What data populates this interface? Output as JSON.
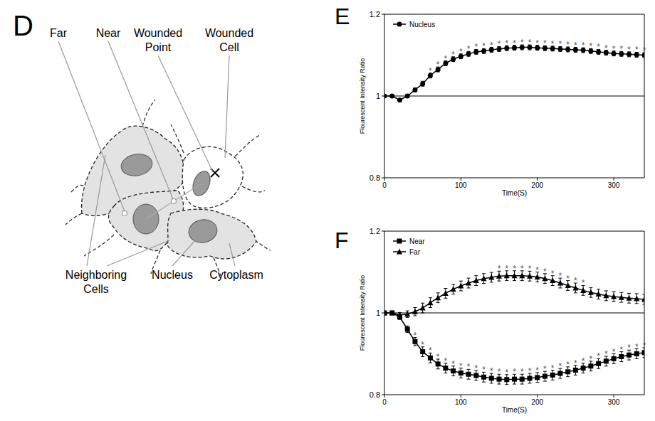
{
  "diagram": {
    "panel": "D",
    "labels": [
      "Far",
      "Near",
      "Wounded Point",
      "Wounded Cell",
      "Neighboring Cells",
      "Nucleus",
      "Cytoplasm"
    ]
  },
  "chart_data": [
    {
      "panel": "E",
      "type": "line",
      "xlabel": "Time(S)",
      "ylabel": "Flourescent Intensity Ratio",
      "x": [
        0,
        10,
        20,
        30,
        40,
        50,
        60,
        70,
        80,
        90,
        100,
        110,
        120,
        130,
        140,
        150,
        160,
        170,
        180,
        190,
        200,
        210,
        220,
        230,
        240,
        250,
        260,
        270,
        280,
        290,
        300,
        310,
        320,
        330,
        340
      ],
      "xlim": [
        0,
        340
      ],
      "xticks": [
        0,
        100,
        200,
        300
      ],
      "ylim": [
        0.8,
        1.2
      ],
      "yticks": [
        0.8,
        1,
        1.2
      ],
      "hline": 1,
      "legend": "upper left",
      "series": [
        {
          "name": "Nucleus",
          "color": "#000000",
          "marker": "circle",
          "values": [
            1,
            1.0,
            0.99,
            1.0,
            1.015,
            1.03,
            1.05,
            1.065,
            1.08,
            1.09,
            1.097,
            1.103,
            1.108,
            1.11,
            1.113,
            1.115,
            1.117,
            1.118,
            1.119,
            1.119,
            1.118,
            1.117,
            1.116,
            1.115,
            1.114,
            1.113,
            1.112,
            1.11,
            1.108,
            1.106,
            1.104,
            1.103,
            1.102,
            1.101,
            1.1
          ],
          "errors": [
            0,
            0.002,
            0.003,
            0.004,
            0.005,
            0.006,
            0.006,
            0.006,
            0.006,
            0.006,
            0.006,
            0.006,
            0.006,
            0.006,
            0.006,
            0.006,
            0.006,
            0.006,
            0.006,
            0.006,
            0.006,
            0.006,
            0.006,
            0.006,
            0.006,
            0.006,
            0.006,
            0.006,
            0.006,
            0.006,
            0.006,
            0.006,
            0.006,
            0.006,
            0.006
          ],
          "significance": {
            "label": "*",
            "x": [
              60,
              70,
              80,
              90,
              100,
              110,
              120,
              130,
              140,
              150,
              160,
              170,
              180,
              190,
              200,
              210,
              220,
              230,
              240,
              250,
              260,
              270,
              280,
              290,
              300,
              310,
              320,
              330,
              340
            ]
          }
        }
      ]
    },
    {
      "panel": "F",
      "type": "line",
      "xlabel": "Time(S)",
      "ylabel": "Flourescent Intensity Ratio",
      "x": [
        0,
        10,
        20,
        30,
        40,
        50,
        60,
        70,
        80,
        90,
        100,
        110,
        120,
        130,
        140,
        150,
        160,
        170,
        180,
        190,
        200,
        210,
        220,
        230,
        240,
        250,
        260,
        270,
        280,
        290,
        300,
        310,
        320,
        330,
        340
      ],
      "xlim": [
        0,
        340
      ],
      "xticks": [
        0,
        100,
        200,
        300
      ],
      "ylim": [
        0.8,
        1.2
      ],
      "yticks": [
        0.8,
        1,
        1.2
      ],
      "hline": 1,
      "legend": "upper left",
      "series": [
        {
          "name": "Near",
          "color": "#000000",
          "marker": "square",
          "values": [
            1,
            1.0,
            0.99,
            0.96,
            0.93,
            0.905,
            0.89,
            0.875,
            0.865,
            0.858,
            0.853,
            0.85,
            0.847,
            0.843,
            0.84,
            0.838,
            0.837,
            0.838,
            0.838,
            0.84,
            0.842,
            0.845,
            0.848,
            0.852,
            0.856,
            0.86,
            0.865,
            0.87,
            0.876,
            0.882,
            0.888,
            0.893,
            0.897,
            0.9,
            0.903
          ],
          "errors": [
            0,
            0.004,
            0.006,
            0.008,
            0.01,
            0.012,
            0.012,
            0.012,
            0.012,
            0.012,
            0.012,
            0.012,
            0.012,
            0.012,
            0.012,
            0.012,
            0.012,
            0.012,
            0.012,
            0.012,
            0.012,
            0.012,
            0.012,
            0.012,
            0.012,
            0.012,
            0.012,
            0.012,
            0.012,
            0.012,
            0.012,
            0.012,
            0.012,
            0.012,
            0.012
          ],
          "significance": {
            "label": "*",
            "x": [
              40,
              50,
              60,
              70,
              80,
              90,
              100,
              110,
              120,
              130,
              140,
              150,
              160,
              170,
              180,
              190,
              200,
              210,
              220,
              230,
              240,
              250,
              260,
              270,
              280,
              290,
              300,
              310,
              320,
              330,
              340
            ]
          }
        },
        {
          "name": "Far",
          "color": "#000000",
          "marker": "triangle",
          "values": [
            1,
            1.0,
            0.995,
            0.997,
            1.003,
            1.012,
            1.025,
            1.037,
            1.048,
            1.058,
            1.066,
            1.073,
            1.079,
            1.084,
            1.087,
            1.09,
            1.091,
            1.091,
            1.091,
            1.09,
            1.088,
            1.084,
            1.079,
            1.073,
            1.067,
            1.061,
            1.055,
            1.05,
            1.046,
            1.042,
            1.04,
            1.038,
            1.036,
            1.035,
            1.033
          ],
          "errors": [
            0,
            0.004,
            0.006,
            0.008,
            0.01,
            0.012,
            0.012,
            0.012,
            0.012,
            0.012,
            0.012,
            0.012,
            0.012,
            0.012,
            0.012,
            0.012,
            0.012,
            0.012,
            0.012,
            0.012,
            0.012,
            0.012,
            0.012,
            0.012,
            0.012,
            0.012,
            0.012,
            0.012,
            0.012,
            0.012,
            0.012,
            0.012,
            0.012,
            0.012,
            0.012
          ],
          "significance": {
            "label": "*",
            "x": [
              150,
              160,
              170,
              180,
              190,
              200,
              210,
              220,
              230,
              240,
              250,
              260
            ]
          }
        }
      ]
    }
  ]
}
